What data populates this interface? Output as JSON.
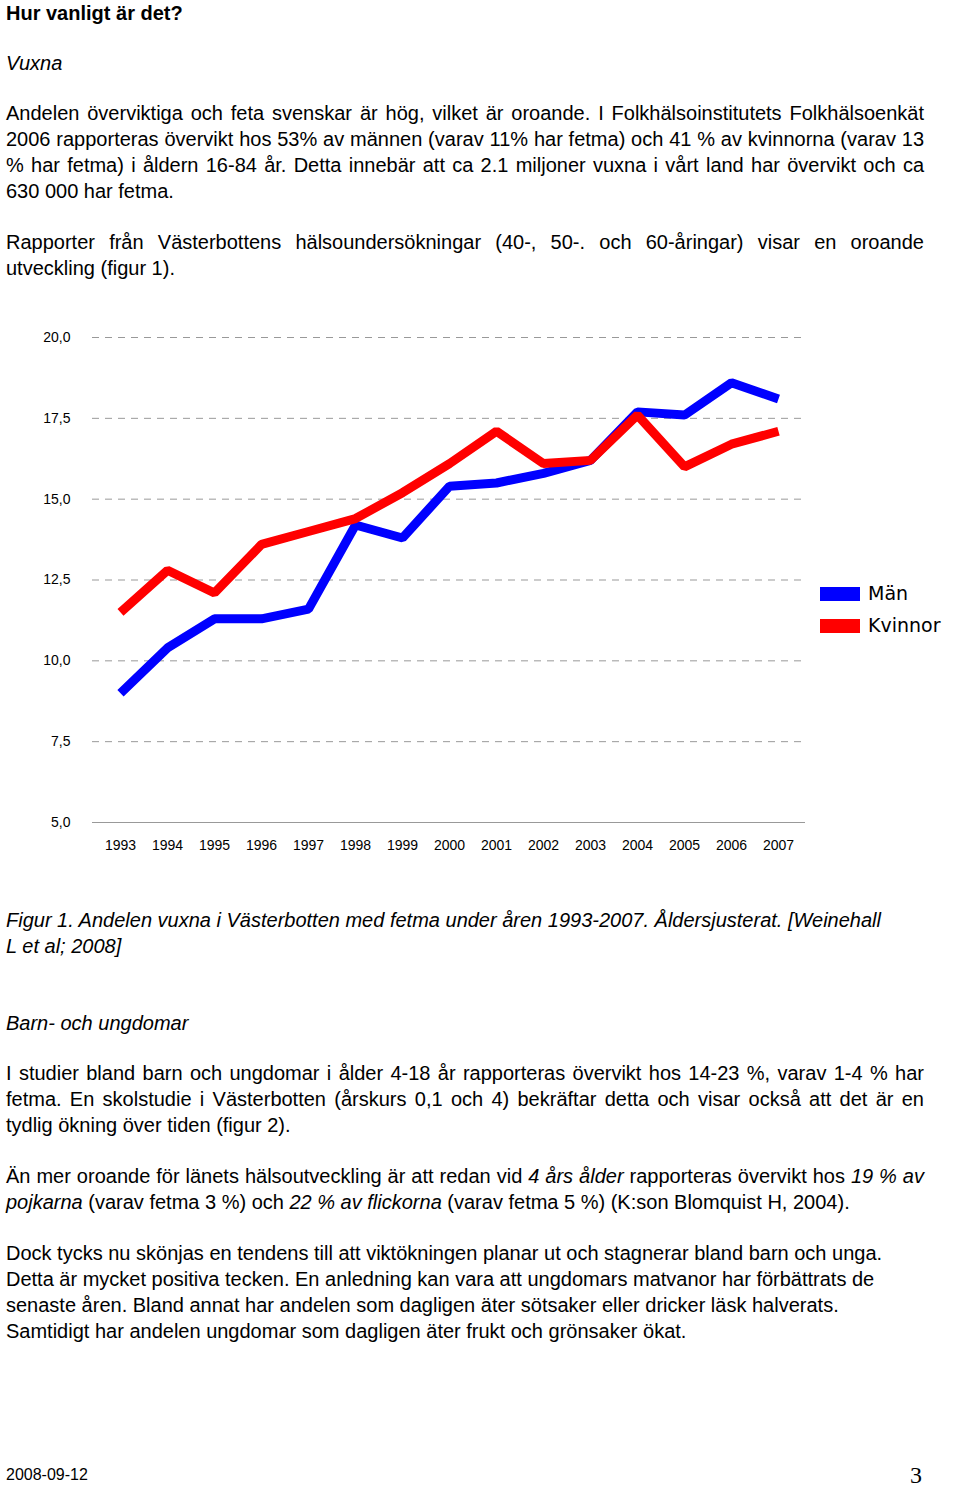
{
  "document": {
    "title": "Hur vanligt är det?",
    "sections": [
      {
        "heading": "Vuxna",
        "paragraphs": [
          [
            "Andelen överviktiga och feta svenskar är hög, vilket är oroande. I Folkhälsoinstitutets Folkhälsoenkät 2006 rapporteras övervikt hos 53% av männen (varav 11% har fetma) och 41 % av kvinnorna (varav 13 % har fetma) i åldern 16-84 år. Detta innebär att ca 2.1 miljoner vuxna i vårt land har övervikt och ca 630 000 har fetma."
          ],
          [
            "Rapporter från Västerbottens hälsoundersökningar (40-, 50-. och 60-åringar) visar en oroande utveckling (figur 1)."
          ]
        ]
      },
      {
        "heading": "Barn- och ungdomar",
        "paragraphs": [
          [
            "I studier bland barn och ungdomar i ålder 4-18 år rapporteras övervikt hos 14-23 %, varav 1-4 % har fetma. En skolstudie i Västerbotten (årskurs 0,1 och 4) bekräftar detta och visar också att det är en tydlig ökning över tiden (figur 2)."
          ],
          [
            "Än mer oroande för länets hälsoutveckling är att redan vid ",
            {
              "text": "4 års ålder",
              "italic": true
            },
            " rapporteras övervikt hos ",
            {
              "text": "19 % av pojkarna",
              "italic": true
            },
            " (varav fetma 3 %) och ",
            {
              "text": "22 % av flickorna",
              "italic": true
            },
            " (varav fetma 5 %) (K:son Blomquist H, 2004)."
          ],
          [
            "Dock tycks nu skönjas en tendens till att viktökningen planar ut och stagnerar bland barn och unga. Detta är mycket positiva tecken. En anledning kan vara att ungdomars matvanor har förbättrats de senaste åren. Bland annat har andelen som dagligen äter sötsaker eller dricker läsk halverats. Samtidigt har andelen ungdomar som dagligen äter frukt och grönsaker ökat."
          ]
        ]
      }
    ],
    "footer": {
      "date": "2008-09-12",
      "page": "3"
    }
  },
  "chart_data": {
    "type": "line",
    "title": "Figur 1. Andelen vuxna i Västerbotten med fetma under åren 1993-2007. Åldersjusterat. [Weinehall L et al; 2008]",
    "categories": [
      "1993",
      "1994",
      "1995",
      "1996",
      "1997",
      "1998",
      "1999",
      "2000",
      "2001",
      "2002",
      "2003",
      "2004",
      "2005",
      "2006",
      "2007"
    ],
    "series": [
      {
        "name": "Män",
        "color": "#0000ff",
        "values": [
          9.0,
          10.4,
          11.3,
          11.3,
          11.6,
          14.2,
          13.8,
          15.4,
          15.5,
          15.8,
          16.2,
          17.7,
          17.6,
          18.6,
          18.1
        ]
      },
      {
        "name": "Kvinnor",
        "color": "#ff0000",
        "values": [
          11.5,
          12.8,
          12.1,
          13.6,
          14.0,
          14.4,
          15.2,
          16.1,
          17.1,
          16.1,
          16.2,
          17.6,
          16.0,
          16.7,
          17.1
        ]
      }
    ],
    "ylim": [
      5,
      20
    ],
    "yticks": [
      {
        "value": 5,
        "label": "5,0"
      },
      {
        "value": 7.5,
        "label": "7,5"
      },
      {
        "value": 10,
        "label": "10,0"
      },
      {
        "value": 12.5,
        "label": "12,5"
      },
      {
        "value": 15,
        "label": "15,0"
      },
      {
        "value": 17.5,
        "label": "17,5"
      },
      {
        "value": 20,
        "label": "20,0"
      }
    ],
    "grid": true,
    "legend": "right"
  }
}
